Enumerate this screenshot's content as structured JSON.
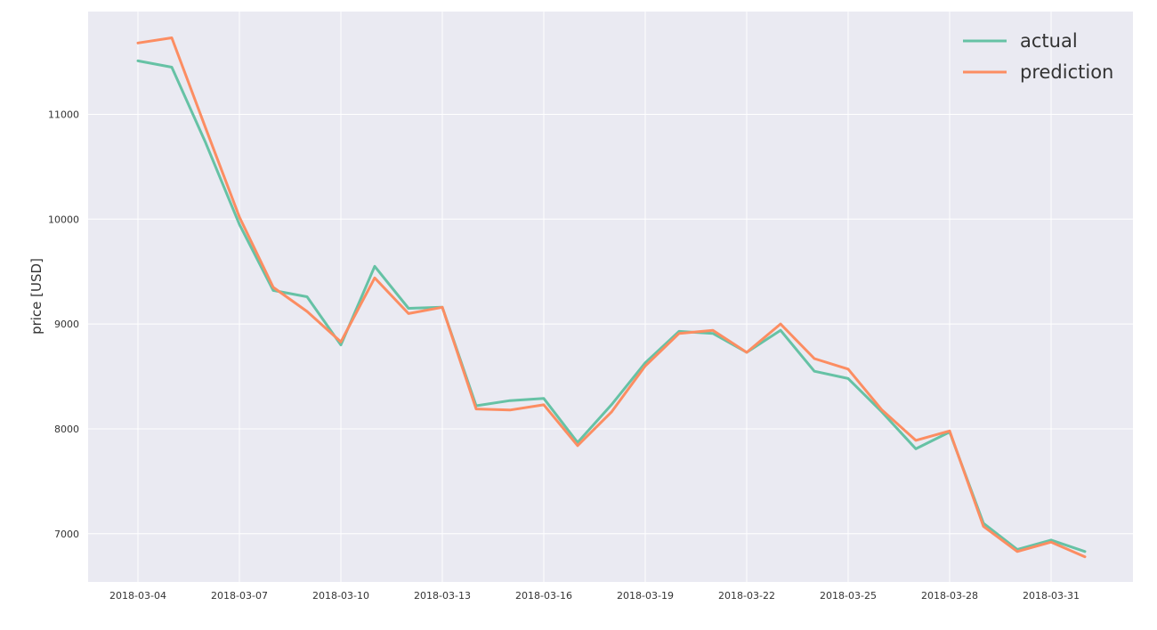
{
  "chart_data": {
    "type": "line",
    "title": "",
    "xlabel": "",
    "ylabel": "price [USD]",
    "x": [
      "2018-03-04",
      "2018-03-05",
      "2018-03-06",
      "2018-03-07",
      "2018-03-08",
      "2018-03-09",
      "2018-03-10",
      "2018-03-11",
      "2018-03-12",
      "2018-03-13",
      "2018-03-14",
      "2018-03-15",
      "2018-03-16",
      "2018-03-17",
      "2018-03-18",
      "2018-03-19",
      "2018-03-20",
      "2018-03-21",
      "2018-03-22",
      "2018-03-23",
      "2018-03-24",
      "2018-03-25",
      "2018-03-26",
      "2018-03-27",
      "2018-03-28",
      "2018-03-29",
      "2018-03-30",
      "2018-03-31",
      "2018-04-01"
    ],
    "xticks": [
      "2018-03-04",
      "2018-03-07",
      "2018-03-10",
      "2018-03-13",
      "2018-03-16",
      "2018-03-19",
      "2018-03-22",
      "2018-03-25",
      "2018-03-28",
      "2018-03-31"
    ],
    "yticks": [
      7000,
      8000,
      9000,
      10000,
      11000
    ],
    "ylim": [
      6540,
      11980
    ],
    "grid": true,
    "legend": "top-right",
    "series": [
      {
        "name": "actual",
        "color": "#66c2a5",
        "values": [
          11510,
          11450,
          10730,
          9950,
          9320,
          9260,
          8800,
          9550,
          9150,
          9160,
          8220,
          8270,
          8290,
          7870,
          8230,
          8630,
          8930,
          8910,
          8730,
          8940,
          8550,
          8480,
          8160,
          7810,
          7970,
          7100,
          6850,
          6940,
          6830
        ]
      },
      {
        "name": "prediction",
        "color": "#fc8d62",
        "values": [
          11680,
          11730,
          10870,
          10020,
          9350,
          9120,
          8830,
          9440,
          9100,
          9160,
          8190,
          8180,
          8230,
          7840,
          8160,
          8600,
          8910,
          8940,
          8730,
          9000,
          8670,
          8570,
          8180,
          7890,
          7980,
          7070,
          6830,
          6920,
          6780
        ]
      }
    ]
  }
}
